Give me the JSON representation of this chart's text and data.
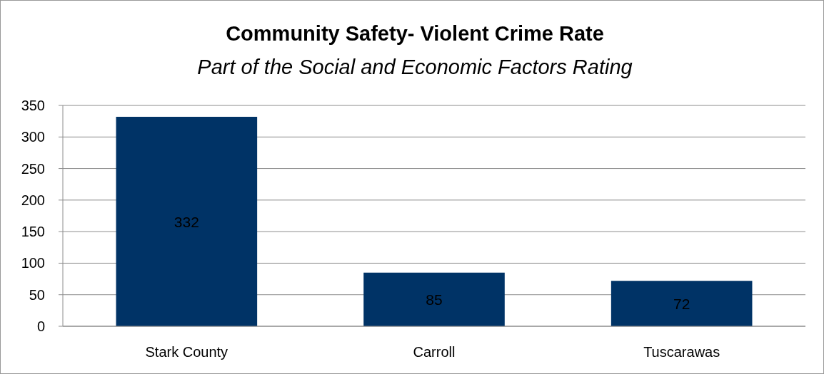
{
  "chart_data": {
    "type": "bar",
    "title": "Community Safety- Violent Crime Rate",
    "subtitle": "Part of the Social and Economic Factors Rating",
    "categories": [
      "Stark County",
      "Carroll",
      "Tuscarawas"
    ],
    "values": [
      332,
      85,
      72
    ],
    "color": "#003366",
    "ylim": [
      0,
      350
    ],
    "yticks": [
      0,
      50,
      100,
      150,
      200,
      250,
      300,
      350
    ],
    "grid": "y",
    "data_labels": true
  }
}
